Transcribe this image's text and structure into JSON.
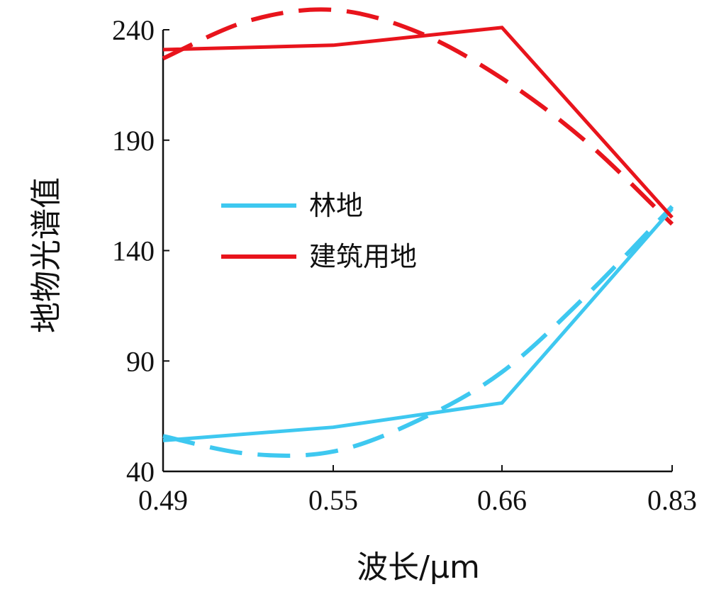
{
  "chart_data": {
    "type": "line",
    "xlabel": "波长/μm",
    "ylabel": "地物光谱值",
    "categories": [
      "0.49",
      "0.55",
      "0.66",
      "0.83"
    ],
    "ylim": [
      40,
      250
    ],
    "yticks": [
      40,
      90,
      140,
      190,
      240
    ],
    "grid": false,
    "legend_position": "center-left",
    "series": [
      {
        "name": "林地",
        "color": "#3ec8f0",
        "values": [
          54,
          60,
          71,
          159
        ]
      },
      {
        "name": "建筑用地",
        "color": "#e8141c",
        "values": [
          231,
          233,
          241,
          155
        ]
      }
    ],
    "fitted_curves": [
      {
        "series": "林地",
        "style": "dashed",
        "color": "#3ec8f0",
        "points": [
          [
            0.49,
            56
          ],
          [
            0.52,
            48
          ],
          [
            0.55,
            49
          ],
          [
            0.605,
            63
          ],
          [
            0.66,
            85
          ],
          [
            0.745,
            120
          ],
          [
            0.83,
            160
          ]
        ]
      },
      {
        "series": "建筑用地",
        "style": "dashed",
        "color": "#e8141c",
        "points": [
          [
            0.49,
            227
          ],
          [
            0.52,
            244
          ],
          [
            0.55,
            249
          ],
          [
            0.605,
            239
          ],
          [
            0.66,
            218
          ],
          [
            0.745,
            189
          ],
          [
            0.83,
            152
          ]
        ]
      }
    ]
  }
}
